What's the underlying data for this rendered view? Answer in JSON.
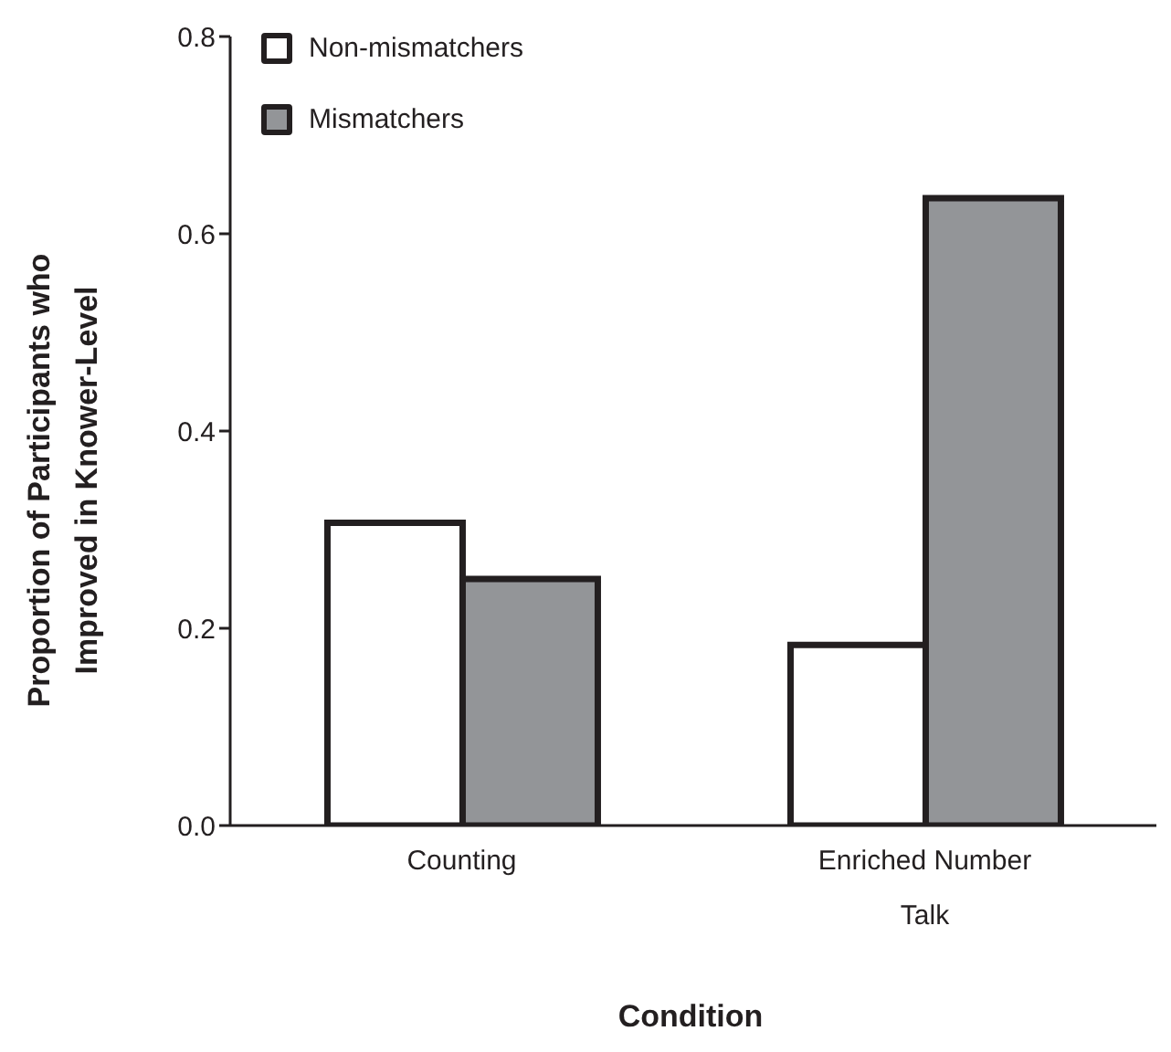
{
  "chart_data": {
    "type": "bar",
    "xlabel": "Condition",
    "ylabel": "Proportion of Participants who Improved in Knower-Level",
    "categories": [
      "Counting",
      "Enriched Number Talk"
    ],
    "series": [
      {
        "name": "Non-mismatchers",
        "color": "#ffffff",
        "values": [
          0.307,
          0.183
        ]
      },
      {
        "name": "Mismatchers",
        "color": "#939598",
        "values": [
          0.25,
          0.636
        ]
      }
    ],
    "ylim": [
      0,
      0.8
    ],
    "yticks": [
      {
        "value": 0,
        "label": "0.0"
      },
      {
        "value": 0.2,
        "label": "0.2"
      },
      {
        "value": 0.4,
        "label": "0.4"
      },
      {
        "value": 0.6,
        "label": "0.6"
      },
      {
        "value": 0.8,
        "label": "0.8"
      }
    ],
    "grid": false,
    "legend": "top left"
  }
}
